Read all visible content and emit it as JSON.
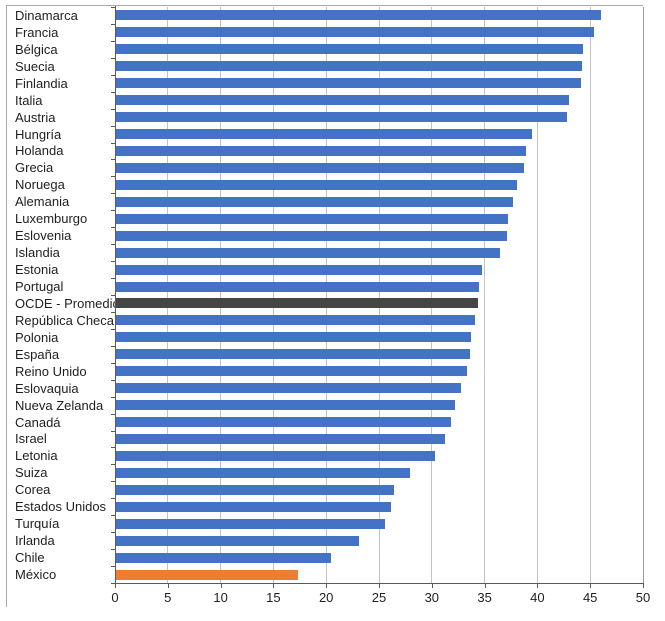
{
  "figure": {
    "description": "Horizontal bar ranking chart of OECD countries (labels in Spanish), highlighted average and Mexico bars",
    "title": "",
    "legend": "none"
  },
  "colors": {
    "default_bar": "#4472c4",
    "average_bar": "#454545",
    "highlight_bar": "#ed7d31",
    "gridline": "#c3c3c3",
    "axis": "#5a5a5a",
    "text": "#1f1f1f",
    "frame": "#a9a9a9",
    "background": "#ffffff"
  },
  "chart_data": {
    "type": "bar",
    "orientation": "horizontal",
    "title": "",
    "xlabel": "",
    "ylabel": "",
    "xlim": [
      0,
      50
    ],
    "xticks": [
      0,
      5,
      10,
      15,
      20,
      25,
      30,
      35,
      40,
      45,
      50
    ],
    "grid": "vertical major gridlines",
    "legend_position": "none",
    "categories": [
      "Dinamarca",
      "Francia",
      "Bélgica",
      "Suecia",
      "Finlandia",
      "Italia",
      "Austria",
      "Hungría",
      "Holanda",
      "Grecia",
      "Noruega",
      "Alemania",
      "Luxemburgo",
      "Eslovenia",
      "Islandia",
      "Estonia",
      "Portugal",
      "OCDE - Promedio",
      "República Checa",
      "Polonia",
      "España",
      "Reino Unido",
      "Eslovaquia",
      "Nueva Zelanda",
      "Canadá",
      "Israel",
      "Letonia",
      "Suiza",
      "Corea",
      "Estados Unidos",
      "Turquía",
      "Irlanda",
      "Chile",
      "México"
    ],
    "values": [
      45.9,
      45.3,
      44.2,
      44.1,
      44.0,
      42.9,
      42.7,
      39.4,
      38.8,
      38.6,
      38.0,
      37.6,
      37.1,
      37.0,
      36.4,
      34.7,
      34.4,
      34.3,
      34.0,
      33.6,
      33.5,
      33.2,
      32.7,
      32.1,
      31.7,
      31.2,
      30.2,
      27.8,
      26.3,
      26.0,
      25.5,
      23.0,
      20.4,
      17.2
    ],
    "color_overrides": {
      "OCDE - Promedio": "#454545",
      "México": "#ed7d31"
    }
  }
}
